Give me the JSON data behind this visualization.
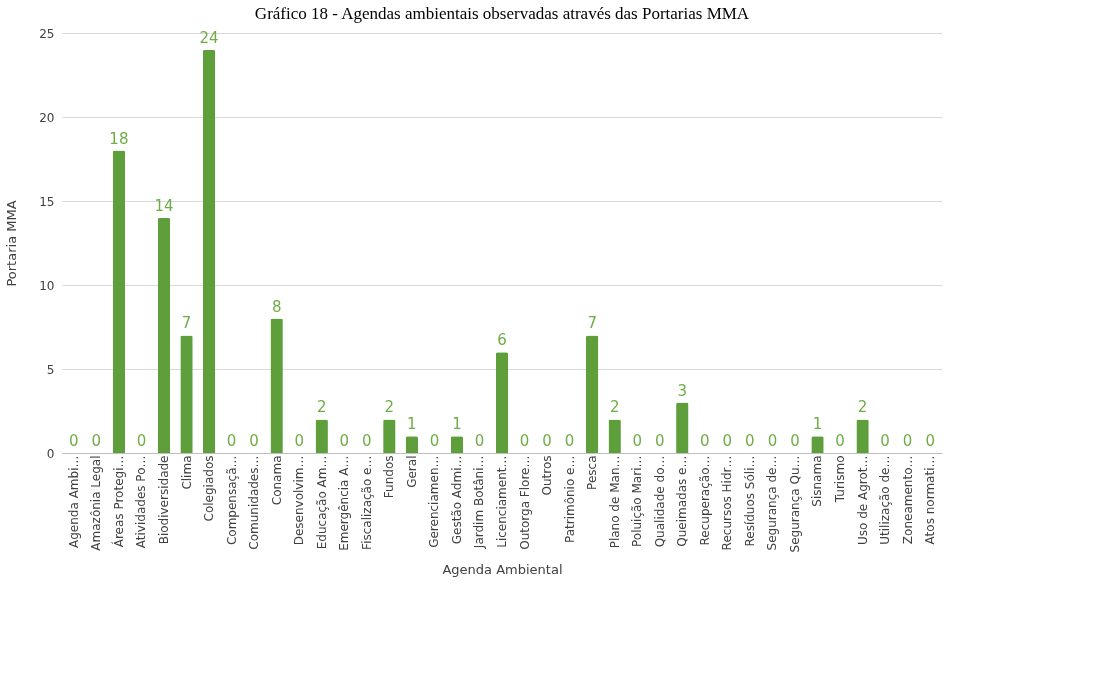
{
  "chart_data": {
    "type": "bar",
    "title": "Gráfico 18 - Agendas ambientais observadas através das Portarias MMA",
    "xlabel": "Agenda Ambiental",
    "ylabel": "Portaria MMA",
    "categories": [
      "Agenda Ambi…",
      "Amazônia Legal",
      "Áreas Protegi…",
      "Atividades Po…",
      "Biodiversidade",
      "Clima",
      "Colegiados",
      "Compensaçã…",
      "Comunidades…",
      "Conama",
      "Desenvolvim…",
      "Educação Am…",
      "Emergência A…",
      "Fiscalização e…",
      "Fundos",
      "Geral",
      "Gerenciamen…",
      "Gestão Admi…",
      "Jardim Botâni…",
      "Licenciament…",
      "Outorga Flore…",
      "Outros",
      "Patrimônio e…",
      "Pesca",
      "Plano de Man…",
      "Poluição Mari…",
      "Qualidade do…",
      "Queimadas e…",
      "Recuperação…",
      "Recursos Hidr…",
      "Resíduos Sóli…",
      "Segurança de…",
      "Segurança Qu…",
      "Sisnama",
      "Turismo",
      "Uso de Agrot…",
      "Utilização de…",
      "Zoneamento…",
      "Atos normati…"
    ],
    "values": [
      0,
      0,
      18,
      0,
      14,
      7,
      24,
      0,
      0,
      8,
      0,
      2,
      0,
      0,
      2,
      1,
      0,
      1,
      0,
      6,
      0,
      0,
      0,
      7,
      2,
      0,
      0,
      3,
      0,
      0,
      0,
      0,
      0,
      1,
      0,
      2,
      0,
      0,
      0
    ],
    "color": "#5e9f3c",
    "ylim": [
      0,
      25
    ],
    "yticks": [
      0,
      5,
      10,
      15,
      20,
      25
    ],
    "grid": "y",
    "data_labels": true
  }
}
